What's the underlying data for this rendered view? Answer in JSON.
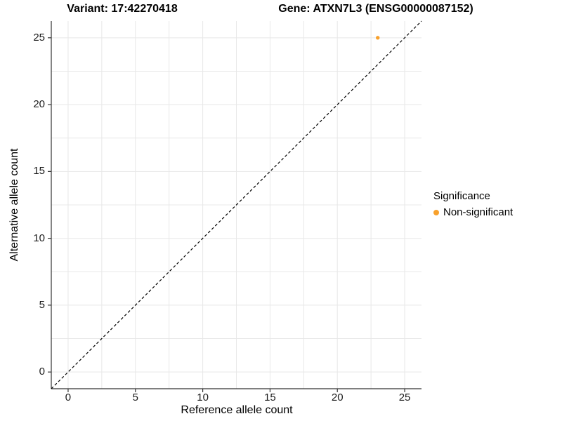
{
  "header": {
    "variant_title": "Variant: 17:42270418",
    "gene_title": "Gene: ATXN7L3 (ENSG00000087152)"
  },
  "chart_data": {
    "type": "scatter",
    "xlabel": "Reference allele count",
    "ylabel": "Alternative allele count",
    "xticks": [
      0,
      5,
      10,
      15,
      20,
      25
    ],
    "yticks": [
      0,
      5,
      10,
      15,
      20,
      25
    ],
    "xlim": [
      -1.25,
      26.25
    ],
    "ylim": [
      -1.25,
      26.25
    ],
    "grid": {
      "major": true,
      "minor": true,
      "minor_step": 2.5
    },
    "points": [
      {
        "x": 23,
        "y": 25,
        "series": "Non-significant"
      }
    ],
    "identity_line": {
      "slope": 1,
      "intercept": 0,
      "style": "dashed",
      "color": "#000000"
    },
    "legend": {
      "title": "Significance",
      "position": "right",
      "items": [
        {
          "label": "Non-significant",
          "color": "#F8A12C"
        }
      ]
    }
  },
  "colors": {
    "point": "#F8A12C",
    "gridline": "#E8E8E8",
    "axis_line": "#333333",
    "tick_text": "#1A1A1A",
    "background": "#FFFFFF"
  }
}
